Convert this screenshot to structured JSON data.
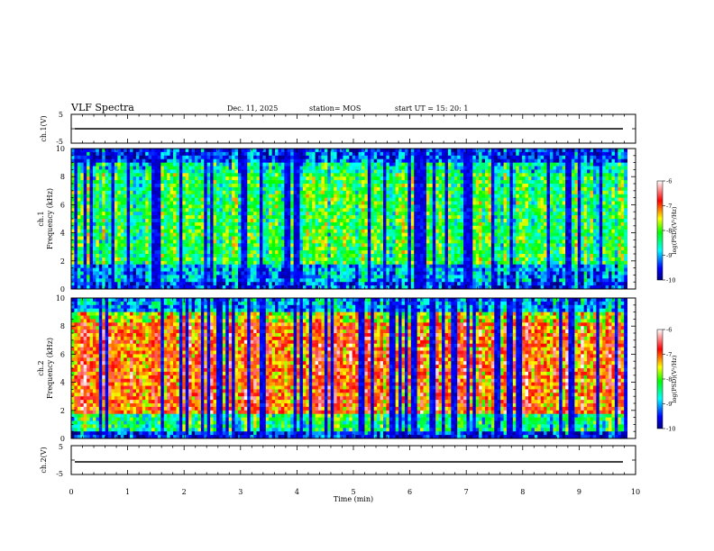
{
  "header": {
    "title": "VLF Spectra",
    "date": "Dec. 11, 2025",
    "station": "station= MOS",
    "start": "start  UT  =   15: 20: 1"
  },
  "chart_data": [
    {
      "type": "line",
      "name": "ch1-waveform",
      "ylabel": "ch.1(V)",
      "ylim": [
        -5,
        5
      ],
      "yticks": [
        "5",
        "-5"
      ],
      "xlim": [
        0,
        10
      ],
      "values_summary": "flat trace near 0 V"
    },
    {
      "type": "heatmap",
      "name": "ch1-spectrogram",
      "ylabel": "ch.1\nFrequency (kHz)",
      "ylabel_lines": [
        "ch.1",
        "Frequency (kHz)"
      ],
      "ylim": [
        0,
        10
      ],
      "yticks": [
        "0",
        "2",
        "4",
        "6",
        "8",
        "10"
      ],
      "xlim": [
        0,
        10
      ],
      "colorbar": {
        "label": "log(PSD)(V²/Hz)",
        "range": [
          -10,
          -6
        ],
        "ticks": [
          "-6",
          "-7",
          "-8",
          "-9",
          "-10"
        ]
      },
      "seed": 17,
      "intensity": 0.45
    },
    {
      "type": "heatmap",
      "name": "ch2-spectrogram",
      "ylabel_lines": [
        "ch.2",
        "Frequency (kHz)"
      ],
      "ylim": [
        0,
        10
      ],
      "yticks": [
        "0",
        "2",
        "4",
        "6",
        "8",
        "10"
      ],
      "xlim": [
        0,
        10
      ],
      "colorbar": {
        "label": "log(PSD)(V²/Hz)",
        "range": [
          -10,
          -6
        ],
        "ticks": [
          "-6",
          "-7",
          "-8",
          "-9",
          "-10"
        ]
      },
      "seed": 53,
      "intensity": 0.75
    },
    {
      "type": "line",
      "name": "ch2-waveform",
      "ylabel": "ch.2(V)",
      "ylim": [
        -5,
        5
      ],
      "yticks": [
        "5",
        "-5"
      ],
      "xlim": [
        0,
        10
      ],
      "values_summary": "flat trace near 0 V"
    }
  ],
  "xaxis": {
    "label": "Time  (min)",
    "ticks": [
      "0",
      "1",
      "2",
      "3",
      "4",
      "5",
      "6",
      "7",
      "8",
      "9",
      "10"
    ],
    "end_minutes": 9.85
  },
  "colors": {
    "scale": [
      "#000080",
      "#0000ff",
      "#00ffff",
      "#00ff00",
      "#ffff00",
      "#ff0000",
      "#ffffff"
    ]
  }
}
